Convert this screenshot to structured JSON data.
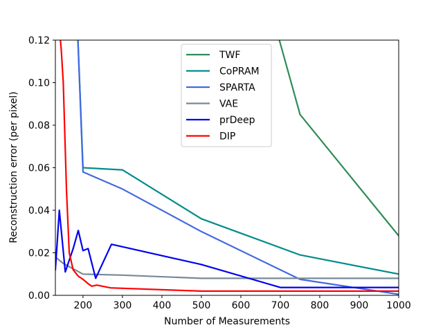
{
  "chart_data": {
    "type": "line",
    "xlabel": "Number of Measurements",
    "ylabel": "Reconstruction error (per pixel)",
    "xlim": [
      130,
      1000
    ],
    "ylim": [
      0.0,
      0.12
    ],
    "x_ticks": [
      200,
      300,
      400,
      500,
      600,
      700,
      800,
      900,
      1000
    ],
    "x_tick_labels": [
      "200",
      "300",
      "400",
      "500",
      "600",
      "700",
      "800",
      "900",
      "1000"
    ],
    "y_ticks": [
      0.0,
      0.02,
      0.04,
      0.06,
      0.08,
      0.1,
      0.12
    ],
    "y_tick_labels": [
      "0.00",
      "0.02",
      "0.04",
      "0.06",
      "0.08",
      "0.10",
      "0.12"
    ],
    "grid": false,
    "legend_position": "top-center",
    "series": [
      {
        "name": "TWF",
        "color": "#2e8b57",
        "x": [
          690,
          750,
          1000
        ],
        "y": [
          0.125,
          0.085,
          0.028
        ]
      },
      {
        "name": "CoPRAM",
        "color": "#008b8b",
        "x": [
          185,
          200,
          300,
          500,
          750,
          1000
        ],
        "y": [
          0.13,
          0.06,
          0.059,
          0.036,
          0.019,
          0.01
        ]
      },
      {
        "name": "SPARTA",
        "color": "#4169e1",
        "x": [
          185,
          200,
          300,
          500,
          750,
          1000
        ],
        "y": [
          0.13,
          0.058,
          0.05,
          0.03,
          0.0075,
          0.0005
        ]
      },
      {
        "name": "VAE",
        "color": "#778899",
        "x": [
          130,
          150,
          200,
          300,
          500,
          750,
          1000
        ],
        "y": [
          0.018,
          0.015,
          0.01,
          0.0095,
          0.008,
          0.008,
          0.008
        ]
      },
      {
        "name": "prDeep",
        "color": "#0000ee",
        "x": [
          130,
          140,
          155,
          175,
          188,
          200,
          213,
          232,
          272,
          500,
          700,
          1000
        ],
        "y": [
          0.012,
          0.04,
          0.011,
          0.022,
          0.0305,
          0.021,
          0.022,
          0.008,
          0.024,
          0.0145,
          0.0037,
          0.0037
        ]
      },
      {
        "name": "DIP",
        "color": "#ff0000",
        "x": [
          130,
          138,
          145,
          150,
          158,
          165,
          175,
          188,
          200,
          213,
          222,
          235,
          270,
          500,
          1000
        ],
        "y": [
          0.13,
          0.13,
          0.115,
          0.1,
          0.05,
          0.02,
          0.012,
          0.009,
          0.0075,
          0.0055,
          0.0043,
          0.0048,
          0.0035,
          0.002,
          0.002
        ]
      }
    ]
  }
}
